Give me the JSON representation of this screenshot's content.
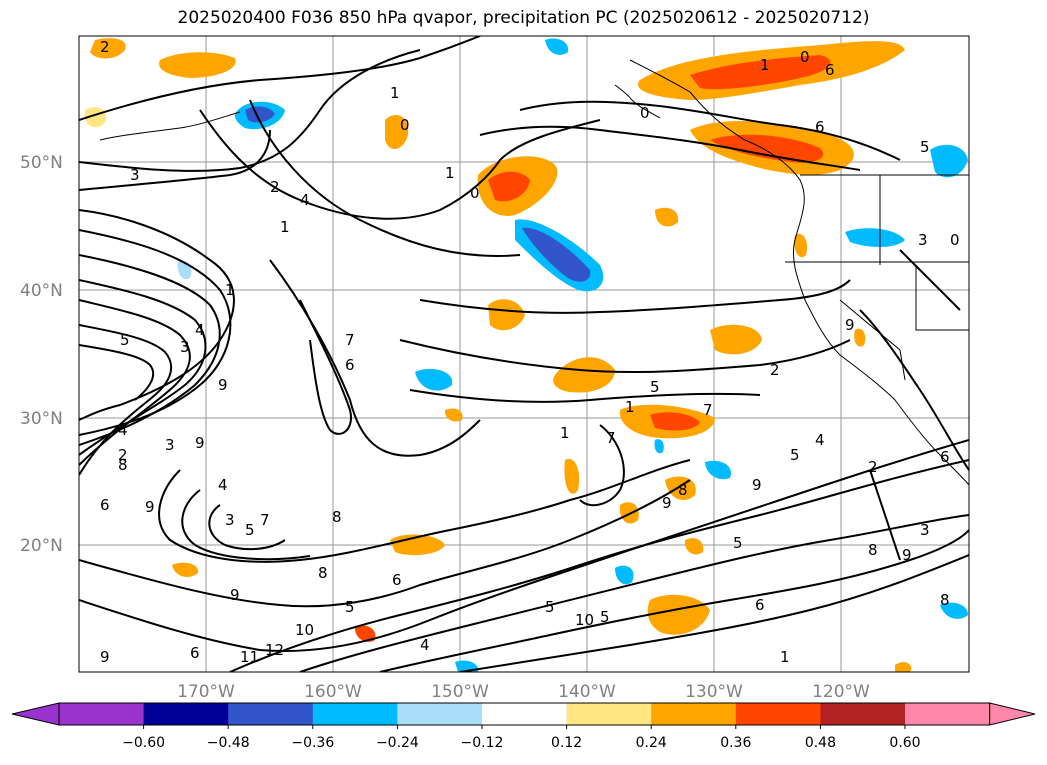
{
  "title": "2025020400 F036 850 hPa qvapor, precipitation PC (2025020612 - 2025020712)",
  "map": {
    "lat_labels": [
      "50°N",
      "40°N",
      "30°N",
      "20°N"
    ],
    "lon_labels": [
      "170°W",
      "160°W",
      "150°W",
      "140°W",
      "130°W",
      "120°W"
    ],
    "contour_labels": [
      "2",
      "3",
      "2",
      "4",
      "1",
      "0",
      "1",
      "0",
      "1",
      "0",
      "1",
      "0",
      "6",
      "6",
      "5",
      "3",
      "0",
      "1",
      "4",
      "3",
      "5",
      "7",
      "6",
      "4",
      "3",
      "9",
      "9",
      "2",
      "6",
      "8",
      "9",
      "4",
      "3",
      "5",
      "7",
      "8",
      "6",
      "8",
      "5",
      "9",
      "12",
      "10",
      "11",
      "9",
      "6",
      "4",
      "5",
      "10",
      "5",
      "9",
      "1",
      "7",
      "1",
      "7",
      "8",
      "9",
      "5",
      "4",
      "5",
      "5",
      "6",
      "9",
      "8",
      "3",
      "8",
      "2",
      "1",
      "2",
      "9",
      "6"
    ]
  },
  "colorbar": {
    "colors": [
      "#9933cc",
      "#000099",
      "#3355cc",
      "#00bbff",
      "#aaddf7",
      "#ffffff",
      "#ffe680",
      "#ffa500",
      "#ff4500",
      "#b22222",
      "#ff88aa"
    ],
    "tick_labels": [
      "−0.60",
      "−0.48",
      "−0.36",
      "−0.24",
      "−0.12",
      "0.12",
      "0.24",
      "0.36",
      "0.48",
      "0.60"
    ]
  }
}
